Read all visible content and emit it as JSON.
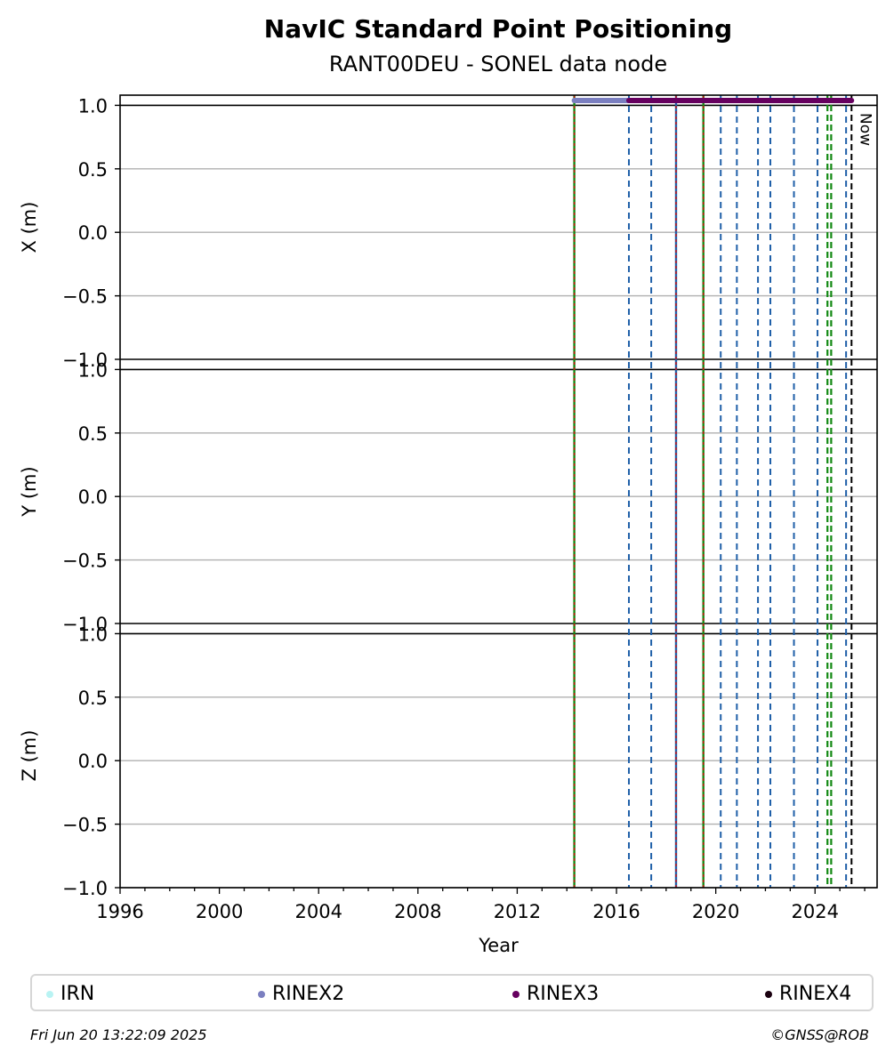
{
  "chart_data": {
    "type": "line",
    "title": "NavIC Standard Point Positioning",
    "subtitle": "RANT00DEU - SONEL data node",
    "xlabel": "Year",
    "xlim": [
      1996,
      2026.5
    ],
    "x_ticks": [
      "1996",
      "2000",
      "2004",
      "2008",
      "2012",
      "2016",
      "2020",
      "2024"
    ],
    "panels": [
      {
        "ylabel": "X (m)",
        "ylim": [
          -1.0,
          1.0
        ],
        "y_ticks": [
          "1.0",
          "0.5",
          "0.0",
          "−0.5",
          "−1.0"
        ]
      },
      {
        "ylabel": "Y (m)",
        "ylim": [
          -1.0,
          1.0
        ],
        "y_ticks": [
          "1.0",
          "0.5",
          "0.0",
          "−0.5",
          "−1.0"
        ]
      },
      {
        "ylabel": "Z (m)",
        "ylim": [
          -1.0,
          1.0
        ],
        "y_ticks": [
          "1.0",
          "0.5",
          "0.0",
          "−0.5",
          "−1.0"
        ]
      }
    ],
    "grid": true,
    "now_label": "Now",
    "now_x": 2025.47,
    "data_bars": [
      {
        "name": "RINEX2",
        "x_start": 2014.3,
        "x_end": 2016.5,
        "color": "#7b7fc0"
      },
      {
        "name": "RINEX3",
        "x_start": 2016.5,
        "x_end": 2025.47,
        "color": "#66005f"
      }
    ],
    "event_lines": [
      {
        "x": 2014.3,
        "style": "solid-green-red"
      },
      {
        "x": 2016.5,
        "style": "dashed-blue"
      },
      {
        "x": 2017.4,
        "style": "dashed-blue"
      },
      {
        "x": 2018.4,
        "style": "solid-blue-red"
      },
      {
        "x": 2019.5,
        "style": "solid-green-red"
      },
      {
        "x": 2020.2,
        "style": "dashed-blue"
      },
      {
        "x": 2020.85,
        "style": "dashed-blue"
      },
      {
        "x": 2021.7,
        "style": "dashed-blue"
      },
      {
        "x": 2022.2,
        "style": "dashed-blue"
      },
      {
        "x": 2023.15,
        "style": "dashed-blue"
      },
      {
        "x": 2024.1,
        "style": "dashed-blue"
      },
      {
        "x": 2024.5,
        "style": "dashed-green"
      },
      {
        "x": 2024.65,
        "style": "dashed-green"
      },
      {
        "x": 2025.25,
        "style": "dashed-blue"
      },
      {
        "x": 2025.47,
        "style": "dashed-black"
      }
    ],
    "legend": [
      {
        "name": "IRN",
        "color": "#b9f3f3"
      },
      {
        "name": "RINEX2",
        "color": "#7b7fc0"
      },
      {
        "name": "RINEX3",
        "color": "#66005f"
      },
      {
        "name": "RINEX4",
        "color": "#1a0010"
      }
    ],
    "legend_position": "bottom"
  },
  "footer": {
    "timestamp": "Fri Jun 20 13:22:09 2025",
    "credit": "©GNSS@ROB"
  }
}
